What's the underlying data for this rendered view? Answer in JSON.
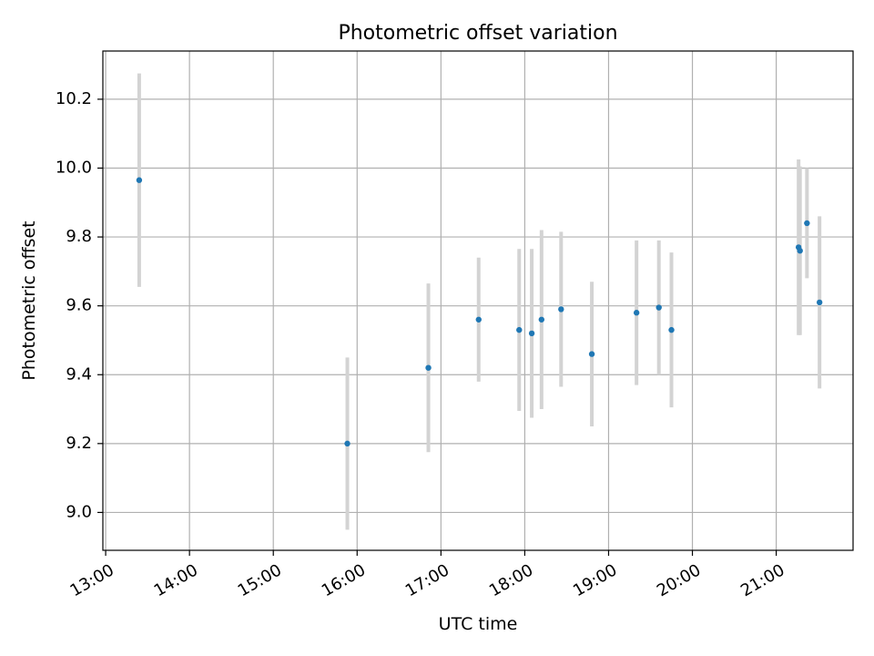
{
  "chart_data": {
    "type": "scatter",
    "title": "Photometric offset variation",
    "xlabel": "UTC time",
    "ylabel": "Photometric offset",
    "x_axis": {
      "kind": "time",
      "min": "12:58",
      "max": "21:55",
      "ticks": [
        "13:00",
        "14:00",
        "15:00",
        "16:00",
        "17:00",
        "18:00",
        "19:00",
        "20:00",
        "21:00"
      ]
    },
    "y_axis": {
      "min": 8.89,
      "max": 10.34,
      "ticks": [
        "9.0",
        "9.2",
        "9.4",
        "9.6",
        "9.8",
        "10.0",
        "10.2"
      ]
    },
    "grid": true,
    "legend": "none",
    "colors": {
      "point": "#1f77b4",
      "errorbar": "#d3d3d3",
      "grid": "#b0b0b0",
      "axis": "#000000"
    },
    "series": [
      {
        "points": [
          {
            "x": "13:24",
            "y": 9.965,
            "yerr": 0.31
          },
          {
            "x": "15:53",
            "y": 9.2,
            "yerr": 0.25
          },
          {
            "x": "16:51",
            "y": 9.42,
            "yerr": 0.245
          },
          {
            "x": "17:27",
            "y": 9.56,
            "yerr": 0.18
          },
          {
            "x": "17:56",
            "y": 9.53,
            "yerr": 0.235
          },
          {
            "x": "18:05",
            "y": 9.52,
            "yerr": 0.245
          },
          {
            "x": "18:12",
            "y": 9.56,
            "yerr": 0.26
          },
          {
            "x": "18:26",
            "y": 9.59,
            "yerr": 0.225
          },
          {
            "x": "18:48",
            "y": 9.46,
            "yerr": 0.21
          },
          {
            "x": "19:20",
            "y": 9.58,
            "yerr": 0.21
          },
          {
            "x": "19:36",
            "y": 9.595,
            "yerr": 0.195
          },
          {
            "x": "19:45",
            "y": 9.53,
            "yerr": 0.225
          },
          {
            "x": "21:16",
            "y": 9.77,
            "yerr": 0.255
          },
          {
            "x": "21:17",
            "y": 9.76,
            "yerr": 0.245
          },
          {
            "x": "21:22",
            "y": 9.84,
            "yerr": 0.16
          },
          {
            "x": "21:31",
            "y": 9.61,
            "yerr": 0.25
          }
        ]
      }
    ]
  }
}
